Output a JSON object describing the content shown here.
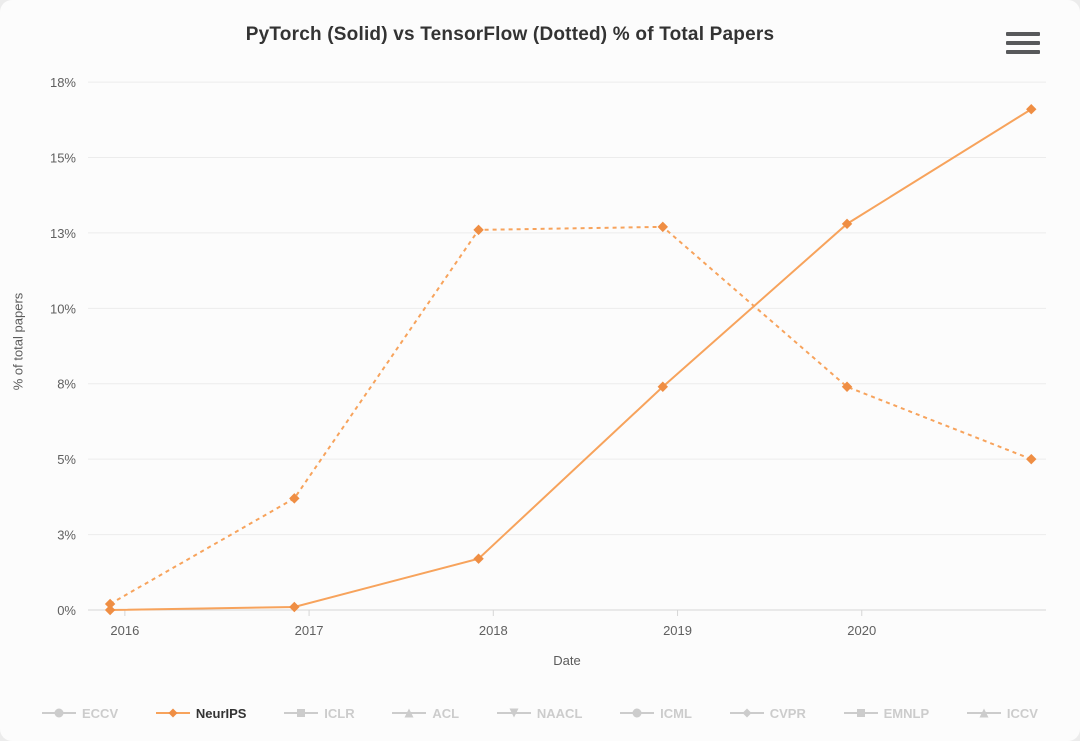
{
  "chart_data": {
    "type": "line",
    "title": "PyTorch (Solid) vs TensorFlow (Dotted) % of Total Papers",
    "xlabel": "Date",
    "ylabel": "% of total papers",
    "x_tick_values": [
      2016,
      2017,
      2018,
      2019,
      2020
    ],
    "x_tick_labels": [
      "2016",
      "2017",
      "2018",
      "2019",
      "2020"
    ],
    "y_tick_values": [
      0,
      2.5,
      5,
      7.5,
      10,
      12.5,
      15,
      17.5
    ],
    "y_tick_labels": [
      "0%",
      "3%",
      "5%",
      "8%",
      "10%",
      "13%",
      "15%",
      "18%"
    ],
    "xlim": [
      2015.8,
      2021.0
    ],
    "ylim": [
      0,
      17.9
    ],
    "grid": true,
    "legend_position": "bottom",
    "x": [
      2015.92,
      2016.92,
      2017.92,
      2018.92,
      2019.92,
      2020.92
    ],
    "series": [
      {
        "name": "NeurIPS PyTorch",
        "framework": "PyTorch",
        "style": "solid",
        "marker": "diamond",
        "values": [
          0.0,
          0.1,
          1.7,
          7.4,
          12.8,
          16.6
        ]
      },
      {
        "name": "NeurIPS TensorFlow",
        "framework": "TensorFlow",
        "style": "dotted",
        "marker": "diamond",
        "values": [
          0.2,
          3.7,
          12.6,
          12.7,
          7.4,
          5.0
        ]
      }
    ],
    "legend": {
      "items": [
        {
          "label": "ECCV",
          "marker": "circle",
          "active": false
        },
        {
          "label": "NeurIPS",
          "marker": "diamond",
          "active": true
        },
        {
          "label": "ICLR",
          "marker": "square",
          "active": false
        },
        {
          "label": "ACL",
          "marker": "triangle",
          "active": false
        },
        {
          "label": "NAACL",
          "marker": "triangle-down",
          "active": false
        },
        {
          "label": "ICML",
          "marker": "circle",
          "active": false
        },
        {
          "label": "CVPR",
          "marker": "diamond",
          "active": false
        },
        {
          "label": "EMNLP",
          "marker": "square",
          "active": false
        },
        {
          "label": "ICCV",
          "marker": "triangle",
          "active": false
        }
      ]
    }
  },
  "menu": {
    "icon": "hamburger-menu-icon"
  },
  "colors": {
    "accent": "#f7a35c",
    "marker": "#ef8e44",
    "disabled_legend": "#cccccc",
    "active_legend_text": "#333333",
    "title_text": "#333333",
    "axis_text": "#606060",
    "gridline": "#ececec",
    "axis_line": "#d6d6d6",
    "background": "#fcfcfc"
  }
}
